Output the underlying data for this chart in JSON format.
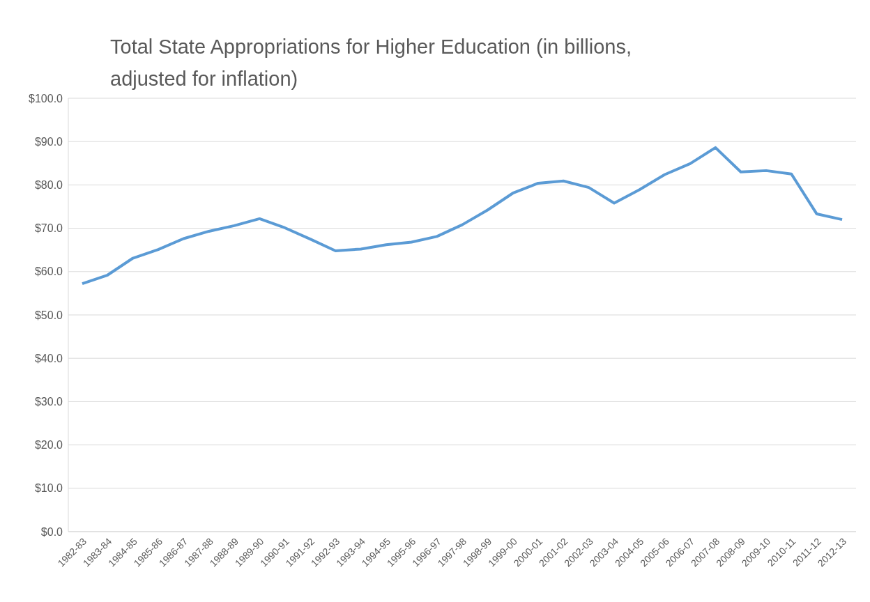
{
  "chart_data": {
    "type": "line",
    "title": "Total State Appropriations for Higher Education (in billions, adjusted for inflation)",
    "categories": [
      "1982-83",
      "1983-84",
      "1984-85",
      "1985-86",
      "1986-87",
      "1987-88",
      "1988-89",
      "1989-90",
      "1990-91",
      "1991-92",
      "1992-93",
      "1993-94",
      "1994-95",
      "1995-96",
      "1996-97",
      "1997-98",
      "1998-99",
      "1999-00",
      "2000-01",
      "2001-02",
      "2002-03",
      "2003-04",
      "2004-05",
      "2005-06",
      "2006-07",
      "2007-08",
      "2008-09",
      "2009-10",
      "2010-11",
      "2011-12",
      "2012-13"
    ],
    "series": [
      {
        "color": "#5b9bd5",
        "values": [
          57.2,
          59.2,
          63.1,
          65.1,
          67.6,
          69.3,
          70.6,
          72.2,
          70.1,
          67.5,
          64.8,
          65.2,
          66.2,
          66.8,
          68.1,
          70.8,
          74.2,
          78.1,
          80.4,
          80.9,
          79.4,
          75.8,
          78.9,
          82.4,
          84.9,
          88.6,
          83.0,
          83.3,
          82.5,
          73.3,
          72.0
        ]
      }
    ],
    "ylim": [
      0,
      100
    ],
    "yticks": [
      {
        "value": 0,
        "label": "$0.0"
      },
      {
        "value": 10,
        "label": "$10.0"
      },
      {
        "value": 20,
        "label": "$20.0"
      },
      {
        "value": 30,
        "label": "$30.0"
      },
      {
        "value": 40,
        "label": "$40.0"
      },
      {
        "value": 50,
        "label": "$50.0"
      },
      {
        "value": 60,
        "label": "$60.0"
      },
      {
        "value": 70,
        "label": "$70.0"
      },
      {
        "value": 80,
        "label": "$80.0"
      },
      {
        "value": 90,
        "label": "$90.0"
      },
      {
        "value": 100,
        "label": "$100.0"
      }
    ],
    "grid": "y",
    "legend": false,
    "marker": "none",
    "line_style": "solid"
  }
}
